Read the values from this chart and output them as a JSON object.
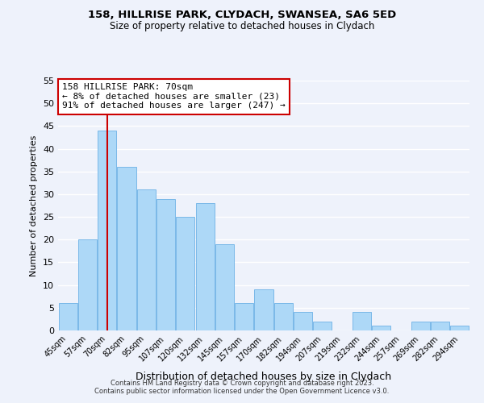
{
  "title": "158, HILLRISE PARK, CLYDACH, SWANSEA, SA6 5ED",
  "subtitle": "Size of property relative to detached houses in Clydach",
  "xlabel": "Distribution of detached houses by size in Clydach",
  "ylabel": "Number of detached properties",
  "bin_labels": [
    "45sqm",
    "57sqm",
    "70sqm",
    "82sqm",
    "95sqm",
    "107sqm",
    "120sqm",
    "132sqm",
    "145sqm",
    "157sqm",
    "170sqm",
    "182sqm",
    "194sqm",
    "207sqm",
    "219sqm",
    "232sqm",
    "244sqm",
    "257sqm",
    "269sqm",
    "282sqm",
    "294sqm"
  ],
  "bar_values": [
    6,
    20,
    44,
    36,
    31,
    29,
    25,
    28,
    19,
    6,
    9,
    6,
    4,
    2,
    0,
    4,
    1,
    0,
    2,
    2,
    1
  ],
  "bar_color": "#add8f7",
  "bar_edge_color": "#7ab8e8",
  "highlight_bar_index": 2,
  "highlight_line_color": "#cc0000",
  "ylim": [
    0,
    55
  ],
  "yticks": [
    0,
    5,
    10,
    15,
    20,
    25,
    30,
    35,
    40,
    45,
    50,
    55
  ],
  "annotation_box_text_line1": "158 HILLRISE PARK: 70sqm",
  "annotation_box_text_line2": "← 8% of detached houses are smaller (23)",
  "annotation_box_text_line3": "91% of detached houses are larger (247) →",
  "annotation_box_edge_color": "#cc0000",
  "background_color": "#eef2fb",
  "grid_color": "#ffffff",
  "footer_line1": "Contains HM Land Registry data © Crown copyright and database right 2023.",
  "footer_line2": "Contains public sector information licensed under the Open Government Licence v3.0."
}
